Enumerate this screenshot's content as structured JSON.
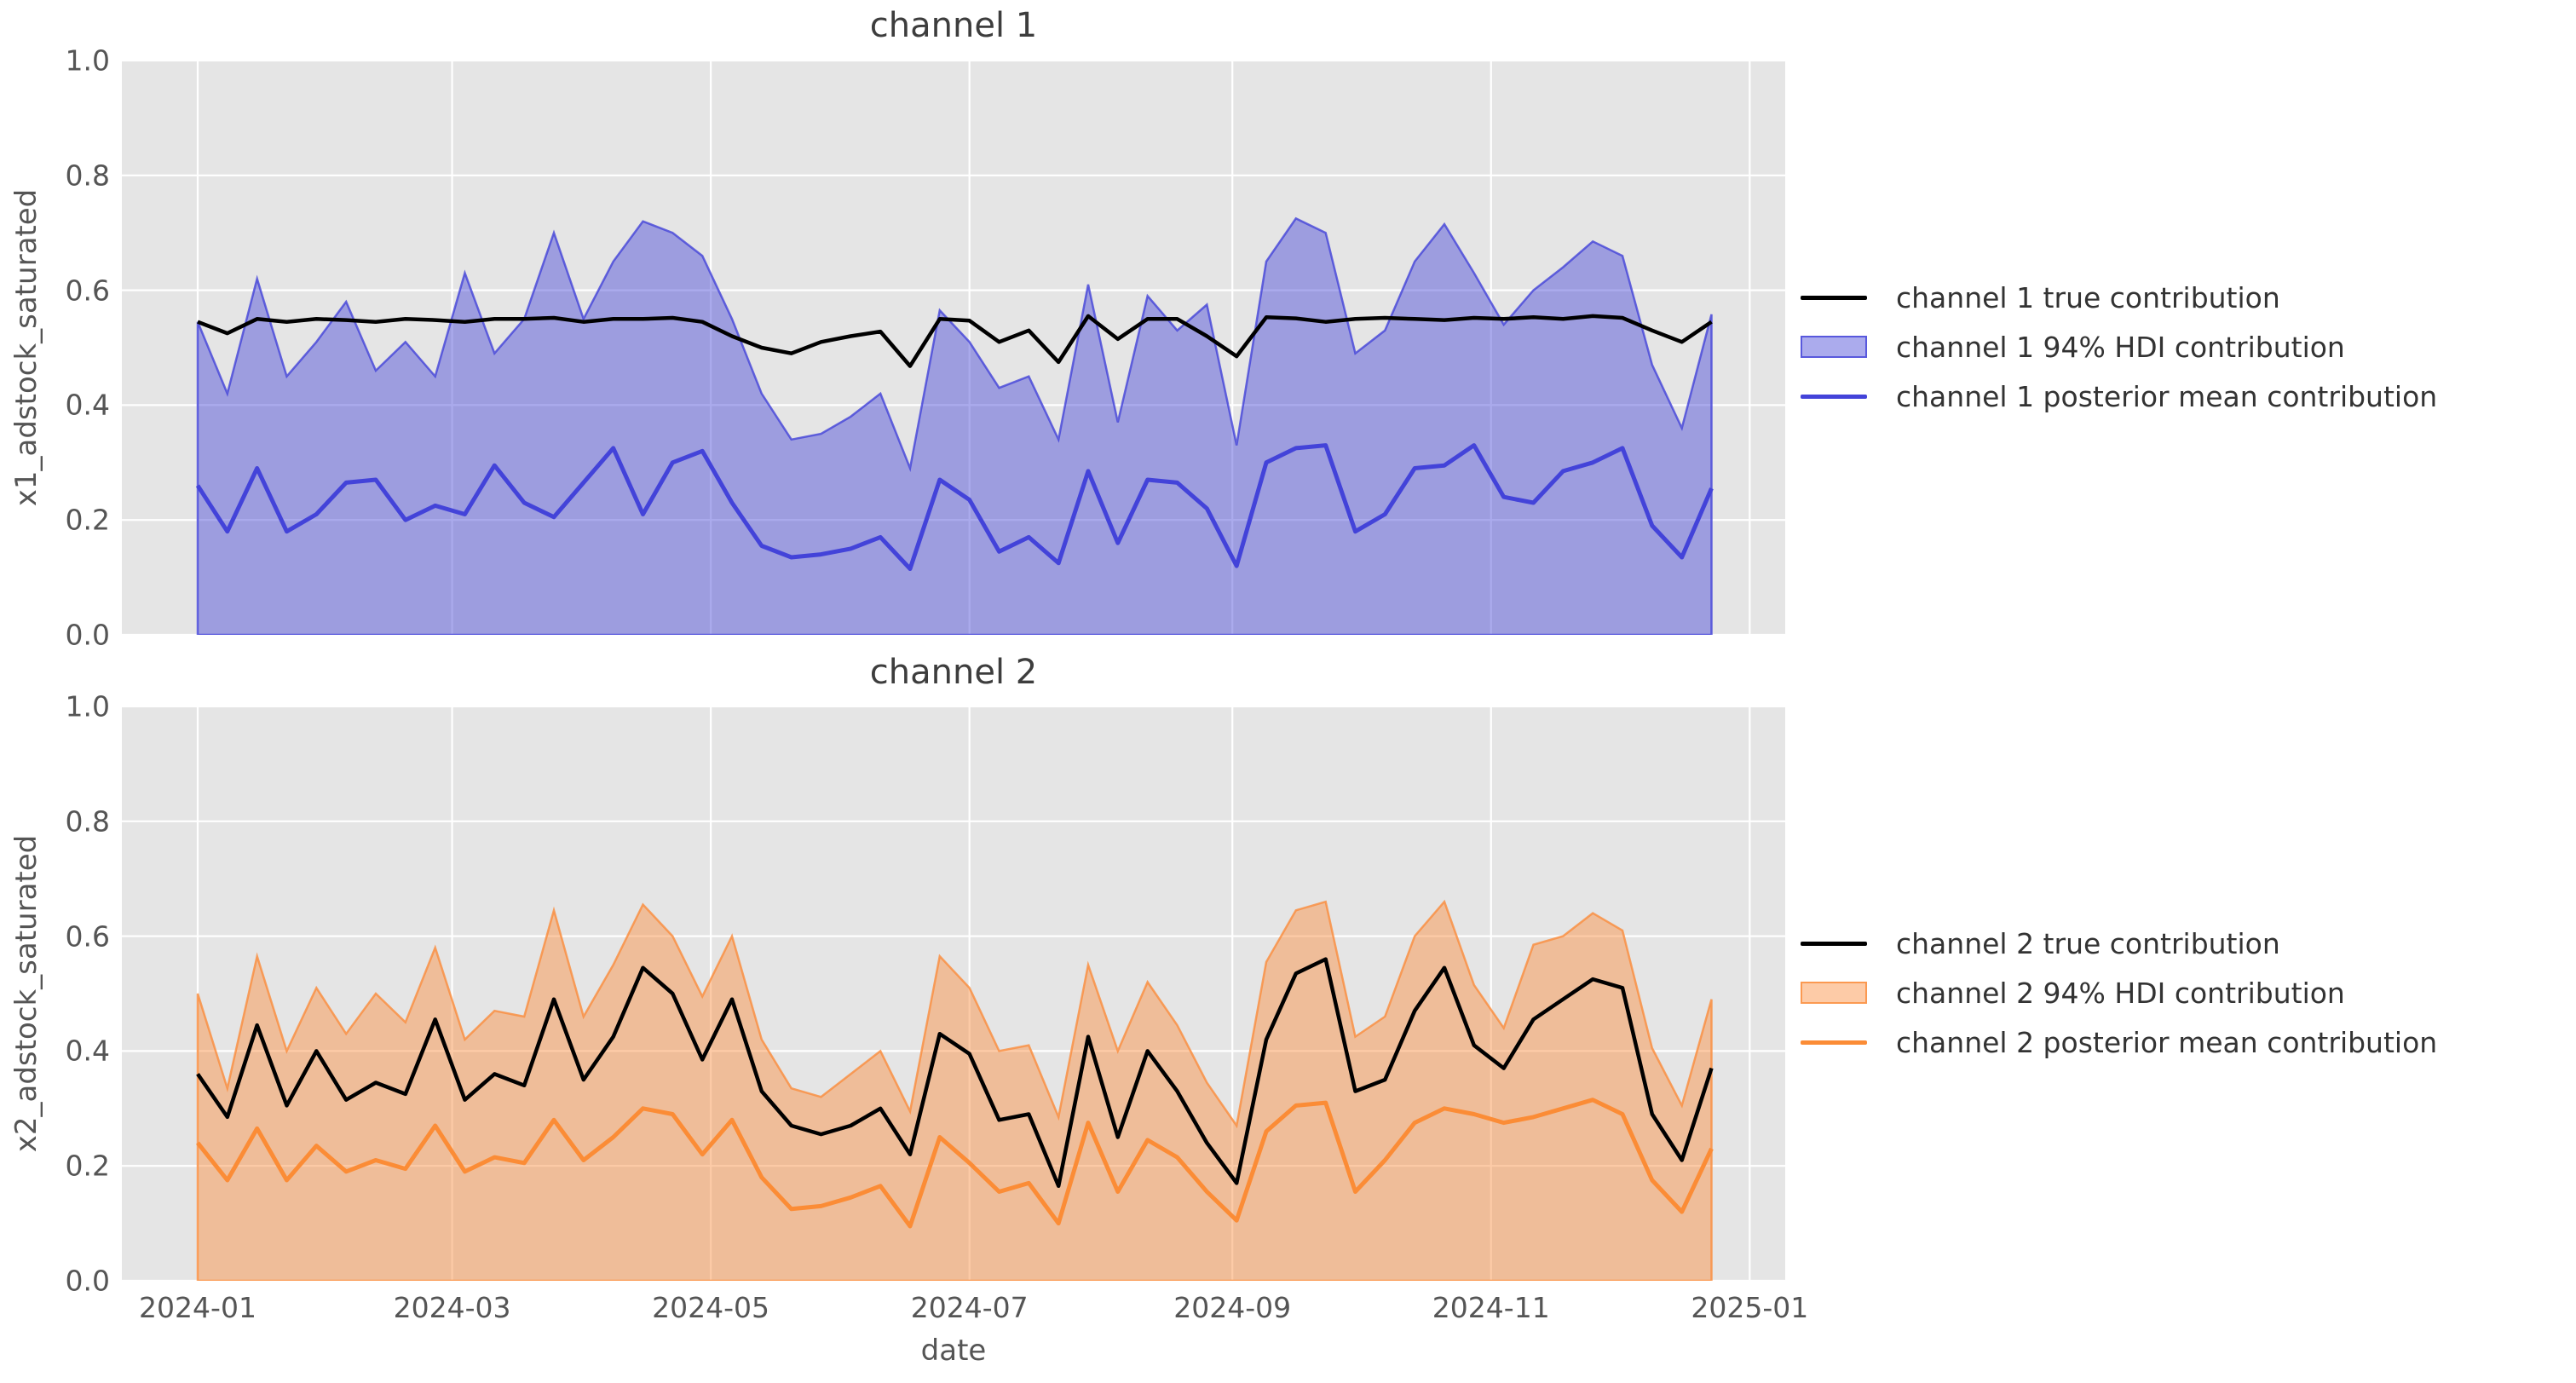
{
  "xlabel": "date",
  "x_tick_labels": [
    "2024-01",
    "2024-03",
    "2024-05",
    "2024-07",
    "2024-09",
    "2024-11",
    "2025-01"
  ],
  "x_tick_days": [
    0,
    60,
    121,
    182,
    244,
    305,
    366
  ],
  "y_tick_labels": [
    "1.0",
    "0.8",
    "0.6",
    "0.4",
    "0.2",
    "0.0"
  ],
  "y_tick_values": [
    1.0,
    0.8,
    0.6,
    0.4,
    0.2,
    0.0
  ],
  "style": {
    "axes_background": "#e5e5e5",
    "grid_color": "#ffffff",
    "text_color": "#555555",
    "title_color": "#3d3d3d",
    "ch1_line": "#4343d9",
    "ch1_band_fill": "rgba(68,68,216,0.45)",
    "ch1_band_edge": "rgba(68,68,216,0.8)",
    "ch2_line": "#fb8c36",
    "ch2_band_fill": "rgba(250,140,60,0.45)",
    "ch2_band_edge": "rgba(250,140,60,0.8)",
    "true_line": "#000000"
  },
  "chart_data": [
    {
      "type": "line",
      "title": "channel 1",
      "ylabel": "x1_adstock_saturated",
      "xlabel": "date",
      "ylim": [
        0.0,
        1.0
      ],
      "grid": true,
      "legend_position": "right",
      "x_start_date": "2024-01-01",
      "x_step_days": 7,
      "n_points": 52,
      "series": [
        {
          "name": "channel 1 true contribution",
          "kind": "line",
          "color": "#000000",
          "values": [
            0.545,
            0.525,
            0.55,
            0.545,
            0.55,
            0.548,
            0.545,
            0.55,
            0.548,
            0.545,
            0.55,
            0.55,
            0.552,
            0.545,
            0.55,
            0.55,
            0.552,
            0.545,
            0.52,
            0.5,
            0.49,
            0.51,
            0.52,
            0.528,
            0.468,
            0.55,
            0.547,
            0.51,
            0.53,
            0.475,
            0.555,
            0.515,
            0.55,
            0.55,
            0.52,
            0.485,
            0.553,
            0.551,
            0.545,
            0.55,
            0.552,
            0.55,
            0.548,
            0.552,
            0.55,
            0.553,
            0.55,
            0.555,
            0.552,
            0.53,
            0.51,
            0.545
          ]
        },
        {
          "name": "channel 1 94% HDI contribution",
          "kind": "band",
          "fill_color": "rgba(68,68,216,0.45)",
          "edge_color": "rgba(68,68,216,0.8)",
          "lower_constant": 0.0,
          "upper": [
            0.545,
            0.42,
            0.62,
            0.45,
            0.51,
            0.58,
            0.46,
            0.51,
            0.45,
            0.63,
            0.49,
            0.55,
            0.7,
            0.55,
            0.65,
            0.72,
            0.7,
            0.66,
            0.55,
            0.42,
            0.34,
            0.35,
            0.38,
            0.42,
            0.29,
            0.565,
            0.51,
            0.43,
            0.45,
            0.34,
            0.61,
            0.37,
            0.59,
            0.53,
            0.575,
            0.33,
            0.65,
            0.725,
            0.7,
            0.49,
            0.53,
            0.65,
            0.715,
            0.63,
            0.54,
            0.6,
            0.64,
            0.685,
            0.66,
            0.47,
            0.36,
            0.558
          ]
        },
        {
          "name": "channel 1 posterior mean contribution",
          "kind": "line",
          "color": "#4343d9",
          "values": [
            0.26,
            0.18,
            0.29,
            0.18,
            0.21,
            0.265,
            0.27,
            0.2,
            0.225,
            0.21,
            0.295,
            0.23,
            0.205,
            0.265,
            0.325,
            0.21,
            0.3,
            0.32,
            0.23,
            0.155,
            0.135,
            0.14,
            0.15,
            0.17,
            0.115,
            0.27,
            0.235,
            0.145,
            0.17,
            0.125,
            0.285,
            0.16,
            0.27,
            0.265,
            0.22,
            0.12,
            0.3,
            0.325,
            0.33,
            0.18,
            0.21,
            0.29,
            0.295,
            0.33,
            0.24,
            0.23,
            0.285,
            0.3,
            0.325,
            0.19,
            0.135,
            0.255
          ]
        }
      ]
    },
    {
      "type": "line",
      "title": "channel 2",
      "ylabel": "x2_adstock_saturated",
      "xlabel": "date",
      "ylim": [
        0.0,
        1.0
      ],
      "grid": true,
      "legend_position": "right",
      "x_start_date": "2024-01-01",
      "x_step_days": 7,
      "n_points": 52,
      "series": [
        {
          "name": "channel 2 true contribution",
          "kind": "line",
          "color": "#000000",
          "values": [
            0.36,
            0.285,
            0.445,
            0.305,
            0.4,
            0.315,
            0.345,
            0.325,
            0.455,
            0.315,
            0.36,
            0.34,
            0.49,
            0.35,
            0.425,
            0.545,
            0.5,
            0.385,
            0.49,
            0.33,
            0.27,
            0.255,
            0.27,
            0.3,
            0.22,
            0.43,
            0.395,
            0.28,
            0.29,
            0.165,
            0.425,
            0.25,
            0.4,
            0.33,
            0.24,
            0.17,
            0.42,
            0.535,
            0.56,
            0.33,
            0.35,
            0.47,
            0.545,
            0.41,
            0.37,
            0.455,
            0.49,
            0.525,
            0.51,
            0.29,
            0.21,
            0.37
          ]
        },
        {
          "name": "channel 2 94% HDI contribution",
          "kind": "band",
          "fill_color": "rgba(250,140,60,0.45)",
          "edge_color": "rgba(250,140,60,0.8)",
          "lower_constant": 0.0,
          "upper": [
            0.5,
            0.335,
            0.565,
            0.4,
            0.51,
            0.43,
            0.5,
            0.45,
            0.58,
            0.42,
            0.47,
            0.46,
            0.645,
            0.46,
            0.55,
            0.655,
            0.6,
            0.495,
            0.6,
            0.42,
            0.335,
            0.32,
            0.36,
            0.4,
            0.295,
            0.565,
            0.51,
            0.4,
            0.41,
            0.285,
            0.55,
            0.4,
            0.52,
            0.445,
            0.345,
            0.27,
            0.555,
            0.645,
            0.66,
            0.425,
            0.46,
            0.6,
            0.66,
            0.515,
            0.44,
            0.585,
            0.6,
            0.64,
            0.61,
            0.405,
            0.305,
            0.49
          ]
        },
        {
          "name": "channel 2 posterior mean contribution",
          "kind": "line",
          "color": "#fb8c36",
          "values": [
            0.24,
            0.175,
            0.265,
            0.175,
            0.235,
            0.19,
            0.21,
            0.195,
            0.27,
            0.19,
            0.215,
            0.205,
            0.28,
            0.21,
            0.25,
            0.3,
            0.29,
            0.22,
            0.28,
            0.18,
            0.125,
            0.13,
            0.145,
            0.165,
            0.095,
            0.25,
            0.205,
            0.155,
            0.17,
            0.1,
            0.275,
            0.155,
            0.245,
            0.215,
            0.155,
            0.105,
            0.26,
            0.305,
            0.31,
            0.155,
            0.21,
            0.275,
            0.3,
            0.29,
            0.275,
            0.285,
            0.3,
            0.315,
            0.29,
            0.175,
            0.12,
            0.23
          ]
        }
      ]
    }
  ]
}
